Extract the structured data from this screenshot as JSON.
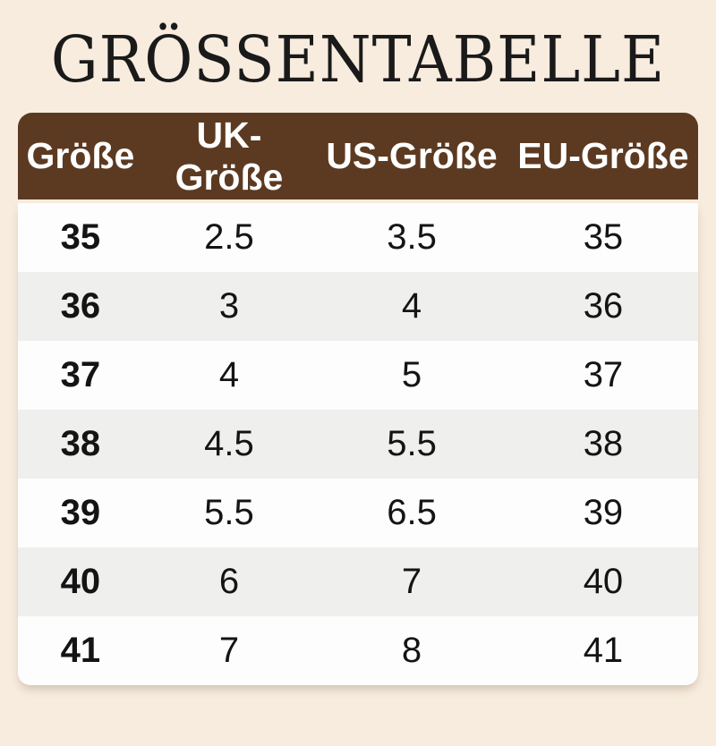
{
  "title": "GRÖSSENTABELLE",
  "colors": {
    "page_background": "#f8ecdf",
    "header_background": "#5c3a21",
    "header_text": "#ffffff",
    "row_white": "#fdfdfd",
    "row_gray": "#efefee",
    "body_text": "#141414",
    "title_text": "#1a1a1a"
  },
  "table": {
    "columns": [
      "Größe",
      "UK-Größe",
      "US-Größe",
      "EU-Größe"
    ],
    "rows": [
      [
        "35",
        "2.5",
        "3.5",
        "35"
      ],
      [
        "36",
        "3",
        "4",
        "36"
      ],
      [
        "37",
        "4",
        "5",
        "37"
      ],
      [
        "38",
        "4.5",
        "5.5",
        "38"
      ],
      [
        "39",
        "5.5",
        "6.5",
        "39"
      ],
      [
        "40",
        "6",
        "7",
        "40"
      ],
      [
        "41",
        "7",
        "8",
        "41"
      ]
    ]
  },
  "chart_data": {
    "type": "table",
    "title": "GRÖSSENTABELLE",
    "columns": [
      "Größe",
      "UK-Größe",
      "US-Größe",
      "EU-Größe"
    ],
    "rows": [
      [
        "35",
        "2.5",
        "3.5",
        "35"
      ],
      [
        "36",
        "3",
        "4",
        "36"
      ],
      [
        "37",
        "4",
        "5",
        "37"
      ],
      [
        "38",
        "4.5",
        "5.5",
        "38"
      ],
      [
        "39",
        "5.5",
        "6.5",
        "39"
      ],
      [
        "40",
        "6",
        "7",
        "40"
      ],
      [
        "41",
        "7",
        "8",
        "41"
      ]
    ],
    "layout": "header row brown with white text, body rows alternate white/light-gray starting white, all cells center-aligned, first column bold"
  }
}
